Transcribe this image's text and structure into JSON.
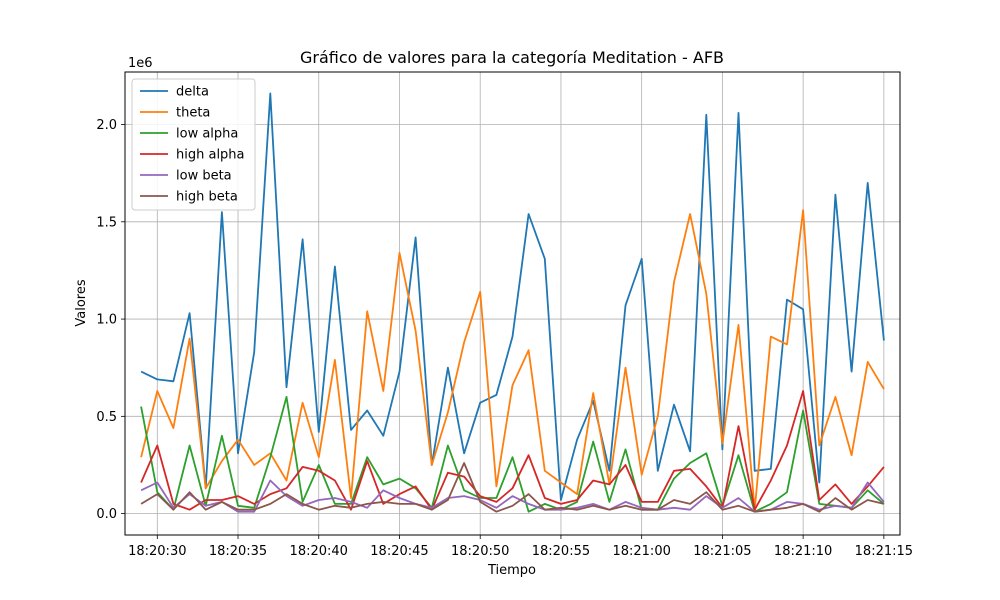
{
  "chart_data": {
    "type": "line",
    "title": "Gráfico de valores para la categoría Meditation - AFB",
    "xlabel": "Tiempo",
    "ylabel": "Valores",
    "y_scale_label": "1e6",
    "xlim": [
      "18:20:28",
      "18:21:16"
    ],
    "ylim": [
      -0.11,
      2.27
    ],
    "x_ticks": [
      "18:20:30",
      "18:20:35",
      "18:20:40",
      "18:20:45",
      "18:20:50",
      "18:20:55",
      "18:21:00",
      "18:21:05",
      "18:21:10",
      "18:21:15"
    ],
    "y_ticks": [
      "0.0",
      "0.5",
      "1.0",
      "1.5",
      "2.0"
    ],
    "y_tick_values": [
      0,
      0.5,
      1.0,
      1.5,
      2.0
    ],
    "grid": true,
    "legend_position": "top-left",
    "x": [
      "18:20:29",
      "18:20:30",
      "18:20:31",
      "18:20:32",
      "18:20:33",
      "18:20:34",
      "18:20:35",
      "18:20:36",
      "18:20:37",
      "18:20:38",
      "18:20:39",
      "18:20:40",
      "18:20:41",
      "18:20:42",
      "18:20:43",
      "18:20:44",
      "18:20:45",
      "18:20:46",
      "18:20:47",
      "18:20:48",
      "18:20:49",
      "18:20:50",
      "18:20:51",
      "18:20:52",
      "18:20:53",
      "18:20:54",
      "18:20:55",
      "18:20:56",
      "18:20:57",
      "18:20:58",
      "18:20:59",
      "18:21:00",
      "18:21:01",
      "18:21:02",
      "18:21:03",
      "18:21:04",
      "18:21:05",
      "18:21:06",
      "18:21:07",
      "18:21:08",
      "18:21:09",
      "18:21:10",
      "18:21:11",
      "18:21:12",
      "18:21:13",
      "18:21:14",
      "18:21:15"
    ],
    "series": [
      {
        "name": "delta",
        "color": "#1f77b4",
        "values": [
          0.73,
          0.69,
          0.68,
          1.03,
          0.13,
          1.55,
          0.31,
          0.83,
          2.16,
          0.65,
          1.41,
          0.42,
          1.27,
          0.43,
          0.53,
          0.4,
          0.73,
          1.42,
          0.25,
          0.75,
          0.31,
          0.57,
          0.61,
          0.91,
          1.54,
          1.31,
          0.07,
          0.38,
          0.58,
          0.22,
          1.07,
          1.31,
          0.22,
          0.56,
          0.32,
          2.05,
          0.33,
          2.06,
          0.22,
          0.23,
          1.1,
          1.05,
          0.16,
          1.64,
          0.73,
          1.7,
          0.89
        ]
      },
      {
        "name": "theta",
        "color": "#ff7f0e",
        "values": [
          0.29,
          0.63,
          0.44,
          0.9,
          0.13,
          0.27,
          0.38,
          0.25,
          0.31,
          0.17,
          0.57,
          0.29,
          0.79,
          0.08,
          1.04,
          0.63,
          1.34,
          0.94,
          0.25,
          0.52,
          0.88,
          1.14,
          0.14,
          0.66,
          0.84,
          0.22,
          0.16,
          0.1,
          0.62,
          0.15,
          0.75,
          0.2,
          0.5,
          1.19,
          1.54,
          1.13,
          0.36,
          0.97,
          0.02,
          0.91,
          0.87,
          1.56,
          0.35,
          0.6,
          0.3,
          0.78,
          0.64
        ]
      },
      {
        "name": "low alpha",
        "color": "#2ca02c",
        "values": [
          0.55,
          0.11,
          0.02,
          0.35,
          0.04,
          0.4,
          0.04,
          0.03,
          0.29,
          0.6,
          0.06,
          0.25,
          0.05,
          0.05,
          0.29,
          0.15,
          0.18,
          0.13,
          0.03,
          0.35,
          0.12,
          0.08,
          0.08,
          0.29,
          0.01,
          0.05,
          0.02,
          0.06,
          0.37,
          0.06,
          0.33,
          0.02,
          0.02,
          0.18,
          0.26,
          0.31,
          0.04,
          0.3,
          0.01,
          0.05,
          0.11,
          0.53,
          0.05,
          0.04,
          0.03,
          0.12,
          0.05
        ]
      },
      {
        "name": "high alpha",
        "color": "#d62728",
        "values": [
          0.16,
          0.35,
          0.05,
          0.02,
          0.07,
          0.07,
          0.09,
          0.05,
          0.1,
          0.13,
          0.24,
          0.22,
          0.17,
          0.02,
          0.27,
          0.05,
          0.1,
          0.14,
          0.02,
          0.21,
          0.19,
          0.09,
          0.06,
          0.13,
          0.3,
          0.08,
          0.05,
          0.07,
          0.17,
          0.15,
          0.25,
          0.06,
          0.06,
          0.22,
          0.23,
          0.14,
          0.03,
          0.45,
          0.02,
          0.17,
          0.35,
          0.63,
          0.07,
          0.15,
          0.05,
          0.14,
          0.24
        ]
      },
      {
        "name": "low beta",
        "color": "#9467bd",
        "values": [
          0.12,
          0.16,
          0.03,
          0.1,
          0.04,
          0.06,
          0.01,
          0.01,
          0.17,
          0.09,
          0.04,
          0.07,
          0.08,
          0.06,
          0.03,
          0.12,
          0.08,
          0.05,
          0.03,
          0.08,
          0.09,
          0.07,
          0.03,
          0.09,
          0.05,
          0.02,
          0.02,
          0.03,
          0.05,
          0.02,
          0.06,
          0.03,
          0.02,
          0.03,
          0.02,
          0.09,
          0.03,
          0.08,
          0.01,
          0.02,
          0.06,
          0.05,
          0.02,
          0.04,
          0.03,
          0.16,
          0.06
        ]
      },
      {
        "name": "high beta",
        "color": "#8c564b",
        "values": [
          0.05,
          0.1,
          0.02,
          0.11,
          0.02,
          0.06,
          0.02,
          0.02,
          0.05,
          0.1,
          0.05,
          0.02,
          0.04,
          0.03,
          0.05,
          0.06,
          0.05,
          0.05,
          0.02,
          0.07,
          0.26,
          0.06,
          0.01,
          0.04,
          0.1,
          0.02,
          0.03,
          0.02,
          0.04,
          0.02,
          0.04,
          0.02,
          0.02,
          0.07,
          0.05,
          0.11,
          0.02,
          0.04,
          0.01,
          0.02,
          0.03,
          0.05,
          0.01,
          0.08,
          0.02,
          0.07,
          0.05
        ]
      }
    ]
  }
}
